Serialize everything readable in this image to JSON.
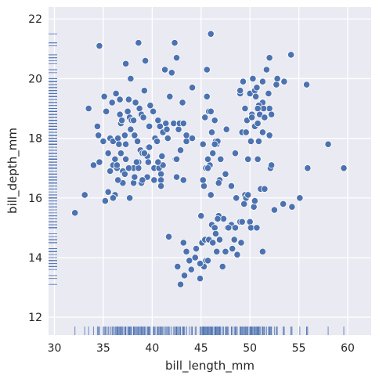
{
  "chart_data": {
    "type": "scatter",
    "xlabel": "bill_length_mm",
    "ylabel": "bill_depth_mm",
    "xlim": [
      29.4,
      62.4
    ],
    "ylim": [
      11.4,
      22.4
    ],
    "xticks": [
      30,
      35,
      40,
      45,
      50,
      55,
      60
    ],
    "yticks": [
      12,
      14,
      16,
      18,
      20,
      22
    ],
    "grid": true,
    "rug": {
      "x": true,
      "y": true
    },
    "colors": {
      "background": "#eaeaf2",
      "grid": "#ffffff",
      "point": "#4c72b0",
      "point_edge": "#ffffff"
    },
    "points": [
      [
        32.1,
        15.5
      ],
      [
        33.1,
        16.1
      ],
      [
        33.5,
        19.0
      ],
      [
        34.0,
        17.1
      ],
      [
        34.4,
        18.4
      ],
      [
        34.5,
        18.1
      ],
      [
        34.6,
        21.1
      ],
      [
        34.6,
        17.2
      ],
      [
        35.0,
        17.9
      ],
      [
        35.1,
        19.4
      ],
      [
        35.2,
        15.9
      ],
      [
        35.3,
        18.9
      ],
      [
        35.5,
        16.2
      ],
      [
        35.7,
        18.0
      ],
      [
        35.9,
        19.2
      ],
      [
        36.0,
        17.9
      ],
      [
        36.0,
        17.1
      ],
      [
        36.2,
        16.1
      ],
      [
        36.2,
        17.3
      ],
      [
        36.4,
        17.0
      ],
      [
        36.5,
        18.0
      ],
      [
        36.6,
        17.8
      ],
      [
        36.7,
        19.3
      ],
      [
        36.7,
        18.8
      ],
      [
        36.8,
        18.5
      ],
      [
        36.9,
        18.6
      ],
      [
        37.0,
        16.9
      ],
      [
        37.2,
        18.1
      ],
      [
        37.3,
        17.8
      ],
      [
        37.3,
        20.5
      ],
      [
        37.5,
        18.9
      ],
      [
        37.6,
        19.3
      ],
      [
        37.7,
        18.7
      ],
      [
        37.8,
        18.3
      ],
      [
        37.8,
        20.0
      ],
      [
        37.9,
        18.6
      ],
      [
        38.1,
        18.6
      ],
      [
        38.1,
        17.0
      ],
      [
        38.2,
        18.1
      ],
      [
        38.3,
        19.2
      ],
      [
        38.5,
        17.9
      ],
      [
        38.6,
        21.2
      ],
      [
        38.6,
        17.2
      ],
      [
        38.7,
        19.0
      ],
      [
        38.8,
        17.6
      ],
      [
        38.9,
        18.8
      ],
      [
        39.0,
        17.5
      ],
      [
        39.1,
        18.7
      ],
      [
        39.2,
        19.6
      ],
      [
        39.3,
        20.6
      ],
      [
        39.5,
        17.4
      ],
      [
        39.6,
        17.7
      ],
      [
        39.7,
        18.4
      ],
      [
        39.8,
        19.1
      ],
      [
        40.1,
        18.9
      ],
      [
        40.2,
        17.0
      ],
      [
        40.3,
        18.0
      ],
      [
        40.5,
        17.9
      ],
      [
        40.6,
        18.6
      ],
      [
        40.7,
        17.0
      ],
      [
        40.8,
        18.4
      ],
      [
        40.9,
        16.8
      ],
      [
        41.0,
        17.4
      ],
      [
        41.1,
        18.2
      ],
      [
        41.3,
        20.3
      ],
      [
        41.4,
        18.5
      ],
      [
        41.5,
        18.3
      ],
      [
        41.6,
        18.0
      ],
      [
        41.8,
        19.4
      ],
      [
        42.0,
        20.2
      ],
      [
        42.2,
        18.5
      ],
      [
        42.3,
        21.2
      ],
      [
        42.5,
        20.7
      ],
      [
        42.7,
        18.3
      ],
      [
        42.8,
        18.5
      ],
      [
        42.9,
        17.6
      ],
      [
        43.1,
        19.2
      ],
      [
        43.2,
        18.5
      ],
      [
        43.5,
        17.9
      ],
      [
        44.1,
        18.0
      ],
      [
        44.1,
        19.7
      ],
      [
        45.2,
        17.8
      ],
      [
        45.6,
        20.3
      ],
      [
        45.8,
        18.9
      ],
      [
        46.0,
        21.5
      ],
      [
        46.4,
        18.6
      ],
      [
        46.5,
        17.9
      ],
      [
        47.0,
        17.3
      ],
      [
        47.6,
        18.3
      ],
      [
        49.0,
        19.5
      ],
      [
        49.5,
        19.0
      ],
      [
        50.0,
        19.5
      ],
      [
        50.2,
        18.7
      ],
      [
        50.5,
        19.6
      ],
      [
        50.7,
        19.7
      ],
      [
        51.3,
        19.9
      ],
      [
        51.5,
        18.7
      ],
      [
        52.0,
        19.0
      ],
      [
        52.7,
        19.8
      ],
      [
        53.5,
        19.9
      ],
      [
        54.2,
        20.8
      ],
      [
        55.8,
        19.8
      ],
      [
        42.9,
        13.1
      ],
      [
        43.2,
        14.5
      ],
      [
        43.3,
        13.4
      ],
      [
        43.5,
        14.2
      ],
      [
        43.8,
        13.9
      ],
      [
        44.0,
        13.6
      ],
      [
        44.4,
        14.0
      ],
      [
        44.5,
        14.3
      ],
      [
        44.9,
        13.3
      ],
      [
        45.0,
        15.4
      ],
      [
        45.1,
        14.5
      ],
      [
        45.2,
        13.8
      ],
      [
        45.3,
        13.7
      ],
      [
        45.4,
        14.6
      ],
      [
        45.5,
        13.9
      ],
      [
        45.7,
        13.9
      ],
      [
        45.8,
        14.6
      ],
      [
        46.1,
        15.1
      ],
      [
        46.2,
        14.5
      ],
      [
        46.4,
        15.0
      ],
      [
        46.5,
        14.8
      ],
      [
        46.6,
        14.2
      ],
      [
        46.8,
        15.4
      ],
      [
        46.9,
        14.6
      ],
      [
        47.2,
        13.7
      ],
      [
        47.3,
        15.3
      ],
      [
        47.5,
        14.2
      ],
      [
        47.7,
        15.0
      ],
      [
        48.1,
        15.1
      ],
      [
        48.2,
        14.3
      ],
      [
        48.4,
        14.6
      ],
      [
        48.5,
        15.0
      ],
      [
        48.7,
        14.1
      ],
      [
        49.0,
        15.2
      ],
      [
        49.1,
        14.5
      ],
      [
        49.2,
        15.2
      ],
      [
        49.4,
        15.8
      ],
      [
        49.5,
        16.1
      ],
      [
        49.6,
        16.0
      ],
      [
        49.8,
        16.1
      ],
      [
        50.0,
        15.2
      ],
      [
        50.1,
        15.0
      ],
      [
        50.4,
        15.7
      ],
      [
        50.5,
        15.9
      ],
      [
        50.7,
        15.0
      ],
      [
        50.8,
        17.3
      ],
      [
        51.1,
        16.3
      ],
      [
        51.3,
        14.2
      ],
      [
        51.5,
        16.3
      ],
      [
        52.1,
        17.0
      ],
      [
        52.2,
        17.1
      ],
      [
        52.5,
        15.6
      ],
      [
        53.4,
        15.8
      ],
      [
        54.3,
        15.7
      ],
      [
        55.1,
        16.0
      ],
      [
        55.9,
        17.0
      ],
      [
        59.6,
        17.0
      ],
      [
        47.8,
        15.0
      ],
      [
        44.9,
        13.8
      ],
      [
        46.0,
        16.1
      ],
      [
        45.3,
        16.4
      ],
      [
        41.7,
        14.7
      ],
      [
        42.6,
        13.7
      ],
      [
        46.7,
        15.3
      ],
      [
        48.6,
        16.0
      ],
      [
        46.5,
        17.9
      ],
      [
        50.0,
        19.5
      ],
      [
        51.3,
        19.2
      ],
      [
        45.4,
        18.7
      ],
      [
        52.7,
        19.8
      ],
      [
        45.2,
        17.8
      ],
      [
        46.1,
        18.2
      ],
      [
        51.3,
        18.2
      ],
      [
        46.0,
        18.9
      ],
      [
        51.3,
        19.9
      ],
      [
        46.6,
        17.8
      ],
      [
        51.7,
        20.3
      ],
      [
        47.0,
        17.3
      ],
      [
        52.0,
        18.1
      ],
      [
        45.9,
        17.1
      ],
      [
        50.5,
        19.6
      ],
      [
        50.3,
        20.0
      ],
      [
        58.0,
        17.8
      ],
      [
        46.4,
        18.6
      ],
      [
        49.2,
        18.2
      ],
      [
        42.4,
        17.3
      ],
      [
        48.5,
        17.5
      ],
      [
        43.2,
        16.6
      ],
      [
        50.6,
        19.4
      ],
      [
        46.7,
        17.9
      ],
      [
        52.0,
        19.0
      ],
      [
        50.5,
        18.4
      ],
      [
        49.5,
        19.0
      ],
      [
        46.4,
        17.8
      ],
      [
        52.8,
        20.0
      ],
      [
        40.9,
        16.6
      ],
      [
        54.2,
        20.8
      ],
      [
        42.5,
        16.7
      ],
      [
        51.0,
        18.8
      ],
      [
        49.7,
        18.6
      ],
      [
        47.5,
        16.8
      ],
      [
        47.6,
        18.3
      ],
      [
        52.0,
        20.7
      ],
      [
        46.9,
        16.6
      ],
      [
        53.5,
        19.9
      ],
      [
        49.0,
        19.5
      ],
      [
        46.2,
        17.5
      ],
      [
        50.9,
        19.1
      ],
      [
        45.5,
        17.0
      ],
      [
        50.9,
        17.9
      ],
      [
        50.8,
        18.5
      ],
      [
        50.1,
        17.9
      ],
      [
        49.0,
        19.6
      ],
      [
        51.5,
        18.7
      ],
      [
        49.8,
        17.3
      ],
      [
        48.1,
        16.4
      ],
      [
        51.4,
        19.0
      ],
      [
        45.7,
        17.3
      ],
      [
        50.7,
        19.7
      ],
      [
        42.5,
        17.3
      ],
      [
        52.2,
        18.8
      ],
      [
        45.2,
        16.6
      ],
      [
        49.3,
        19.9
      ],
      [
        50.2,
        18.8
      ],
      [
        45.6,
        19.4
      ],
      [
        51.9,
        19.5
      ],
      [
        46.8,
        16.5
      ],
      [
        45.7,
        17.0
      ],
      [
        55.8,
        19.8
      ],
      [
        43.5,
        18.1
      ],
      [
        49.6,
        18.2
      ],
      [
        50.8,
        19.0
      ],
      [
        50.2,
        18.7
      ],
      [
        39.5,
        16.7
      ],
      [
        38.6,
        17.0
      ],
      [
        37.7,
        16.0
      ],
      [
        38.1,
        16.5
      ],
      [
        36.4,
        17.1
      ],
      [
        39.2,
        17.5
      ],
      [
        37.0,
        16.5
      ],
      [
        35.5,
        17.5
      ],
      [
        36.3,
        19.5
      ],
      [
        36.8,
        17.5
      ],
      [
        39.6,
        17.2
      ],
      [
        38.9,
        16.5
      ],
      [
        37.2,
        16.8
      ],
      [
        35.7,
        16.9
      ],
      [
        40.2,
        16.6
      ],
      [
        41.1,
        17.1
      ],
      [
        40.6,
        17.2
      ],
      [
        39.7,
        17.7
      ],
      [
        40.9,
        16.4
      ],
      [
        37.6,
        17.0
      ],
      [
        36.0,
        16.0
      ],
      [
        39.0,
        16.6
      ],
      [
        36.5,
        16.6
      ],
      [
        38.2,
        16.7
      ],
      [
        37.3,
        17.3
      ],
      [
        38.4,
        17.2
      ]
    ]
  }
}
